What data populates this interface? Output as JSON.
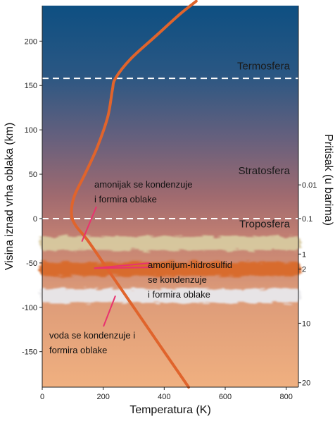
{
  "chart_data": {
    "type": "line",
    "xlabel": "Temperatura (K)",
    "ylabel": "Visina iznad vrha oblaka (km)",
    "y2label": "Pritisak (u barima)",
    "xlim": [
      0,
      840
    ],
    "ylim": [
      -190,
      240
    ],
    "x_ticks": [
      0,
      200,
      400,
      600,
      800
    ],
    "y_ticks": [
      200,
      150,
      100,
      50,
      0,
      -50,
      -100,
      -150
    ],
    "x_tick_labels": [
      "0",
      "200",
      "400",
      "600",
      "800"
    ],
    "y_tick_labels": [
      "200",
      "150",
      "100",
      "50",
      "0",
      "-50",
      "-100",
      "-150"
    ],
    "pressure_ticks": [
      {
        "label": "0.01",
        "alt": 38
      },
      {
        "label": "0.1",
        "alt": 0
      },
      {
        "label": "1",
        "alt": -40
      },
      {
        "label": "2",
        "alt": -57
      },
      {
        "label": "10",
        "alt": -118
      },
      {
        "label": "20",
        "alt": -185
      }
    ],
    "series": [
      {
        "points": [
          [
            480,
            -190
          ],
          [
            400,
            -150
          ],
          [
            300,
            -100
          ],
          [
            220,
            -60
          ],
          [
            150,
            -25
          ],
          [
            110,
            -8
          ],
          [
            96,
            5
          ],
          [
            105,
            25
          ],
          [
            140,
            50
          ],
          [
            180,
            80
          ],
          [
            215,
            115
          ],
          [
            230,
            145
          ],
          [
            240,
            158
          ],
          [
            290,
            180
          ],
          [
            370,
            205
          ],
          [
            450,
            230
          ],
          [
            505,
            245
          ]
        ],
        "color": "#e0642c"
      }
    ],
    "boundaries": [
      {
        "alt": 158,
        "label": "Termosfera"
      },
      {
        "alt": 0,
        "label": "Troposfera"
      }
    ],
    "layer_labels": [
      {
        "text": "Termosfera",
        "alt": 168
      },
      {
        "text": "Stratosfera",
        "alt": 50
      },
      {
        "text": "Troposfera",
        "alt": -10
      }
    ],
    "clouds": [
      {
        "alt": -28,
        "color": "#d8caa0",
        "name": "ammonia"
      },
      {
        "alt": -57,
        "color": "#d96a2a",
        "name": "ammonium-hydrosulfide"
      },
      {
        "alt": -87,
        "color": "#e8e8ec",
        "name": "water"
      }
    ],
    "annotations": [
      {
        "lines": [
          "amonijak se kondenzuje",
          "i formira oblake"
        ],
        "target": [
          130,
          -26
        ],
        "color": "#e8336f"
      },
      {
        "lines": [
          "amonijum-hidrosulfid",
          "se kondenzuje",
          "i formira oblake"
        ],
        "target": [
          170,
          -56
        ],
        "target2": [
          360,
          -55
        ],
        "color": "#e8336f"
      },
      {
        "lines": [
          "voda se kondenzuje i",
          "formira oblake"
        ],
        "target": [
          240,
          -87
        ],
        "color": "#e8336f"
      }
    ]
  }
}
